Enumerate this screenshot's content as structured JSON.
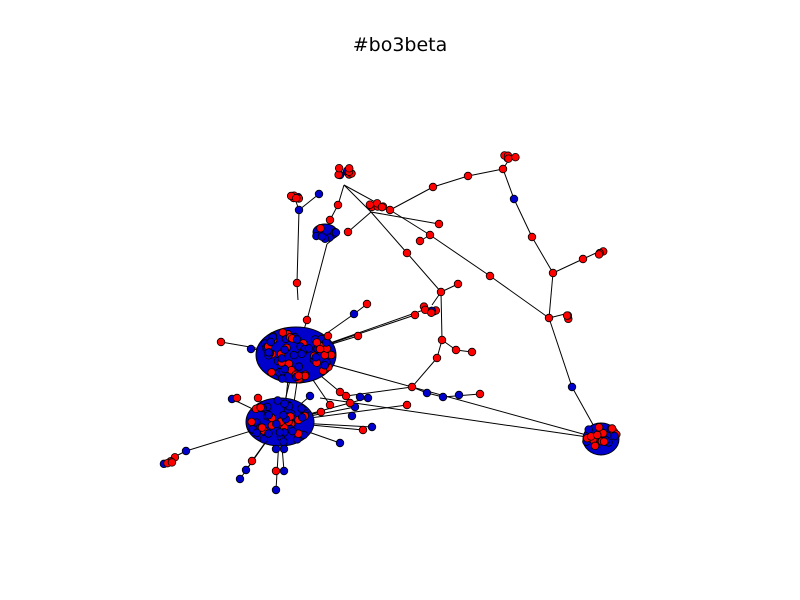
{
  "title": "#bo3beta",
  "colors": {
    "background": "#ffffff",
    "edge": "#000000",
    "node_outline": "#000000",
    "node_group_a": "#ff0000",
    "node_group_b": "#0000cc"
  },
  "graph": {
    "type": "network",
    "node_groups": [
      "red",
      "blue"
    ]
  }
}
